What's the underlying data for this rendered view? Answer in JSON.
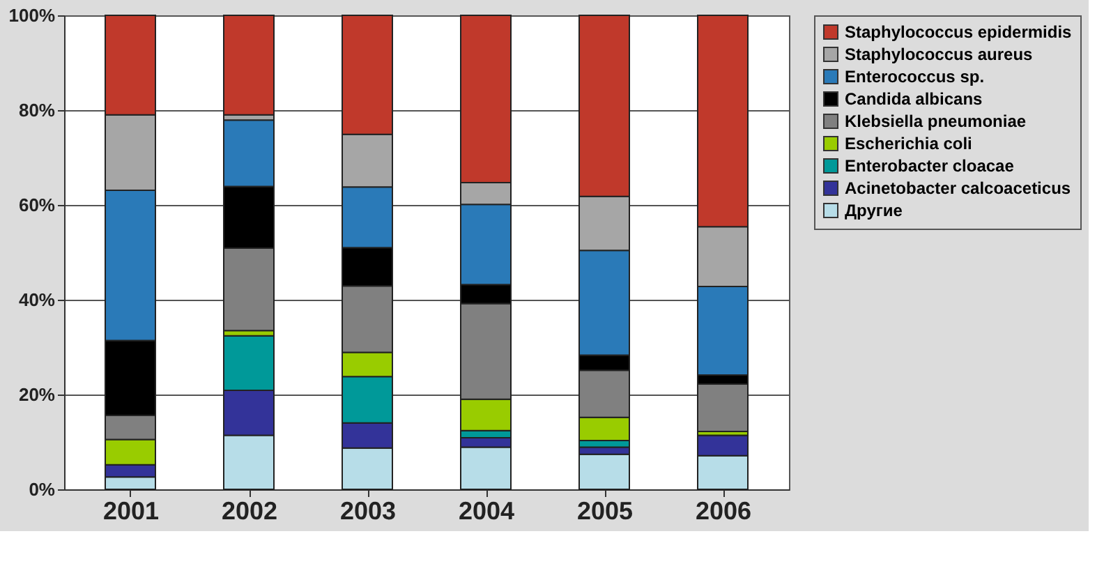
{
  "chart_data": {
    "type": "bar",
    "stacked": true,
    "categories": [
      "2001",
      "2002",
      "2003",
      "2004",
      "2005",
      "2006"
    ],
    "series": [
      {
        "name": "Другие",
        "color": "#b7dde8",
        "values": [
          2.6,
          11.4,
          8.7,
          8.9,
          7.4,
          7.1
        ]
      },
      {
        "name": "Acinetobacter calcoaceticus",
        "color": "#333399",
        "values": [
          2.6,
          9.5,
          5.3,
          2.0,
          1.5,
          4.3
        ]
      },
      {
        "name": "Enterobacter cloacae",
        "color": "#009999",
        "values": [
          0,
          11.5,
          9.8,
          1.5,
          1.4,
          0
        ]
      },
      {
        "name": "Escherichia coli",
        "color": "#99cc00",
        "values": [
          5.3,
          1.1,
          5.1,
          6.6,
          4.9,
          0.8
        ]
      },
      {
        "name": "Klebsiella pneumoniae",
        "color": "#808080",
        "values": [
          5.1,
          17.4,
          14.0,
          20.2,
          9.9,
          10.0
        ]
      },
      {
        "name": "Candida albicans",
        "color": "#000000",
        "values": [
          15.8,
          13.0,
          8.1,
          4.0,
          3.2,
          1.9
        ]
      },
      {
        "name": "Enterococcus sp.",
        "color": "#2a7ab8",
        "values": [
          31.7,
          14.0,
          12.8,
          16.9,
          22.1,
          18.7
        ]
      },
      {
        "name": "Staphylococcus aureus",
        "color": "#a6a6a6",
        "values": [
          15.9,
          1.1,
          11.1,
          4.6,
          11.4,
          12.6
        ]
      },
      {
        "name": "Staphylococcus epidermidis",
        "color": "#c0392b",
        "values": [
          21.0,
          21.0,
          25.1,
          35.3,
          38.2,
          44.6
        ]
      }
    ],
    "ylim": [
      0,
      100
    ],
    "yticks": [
      {
        "value": 0,
        "label": "0%"
      },
      {
        "value": 20,
        "label": "20%"
      },
      {
        "value": 40,
        "label": "40%"
      },
      {
        "value": 60,
        "label": "60%"
      },
      {
        "value": 80,
        "label": "80%"
      },
      {
        "value": 100,
        "label": "100%"
      }
    ],
    "grid": "y",
    "legend": "right"
  }
}
